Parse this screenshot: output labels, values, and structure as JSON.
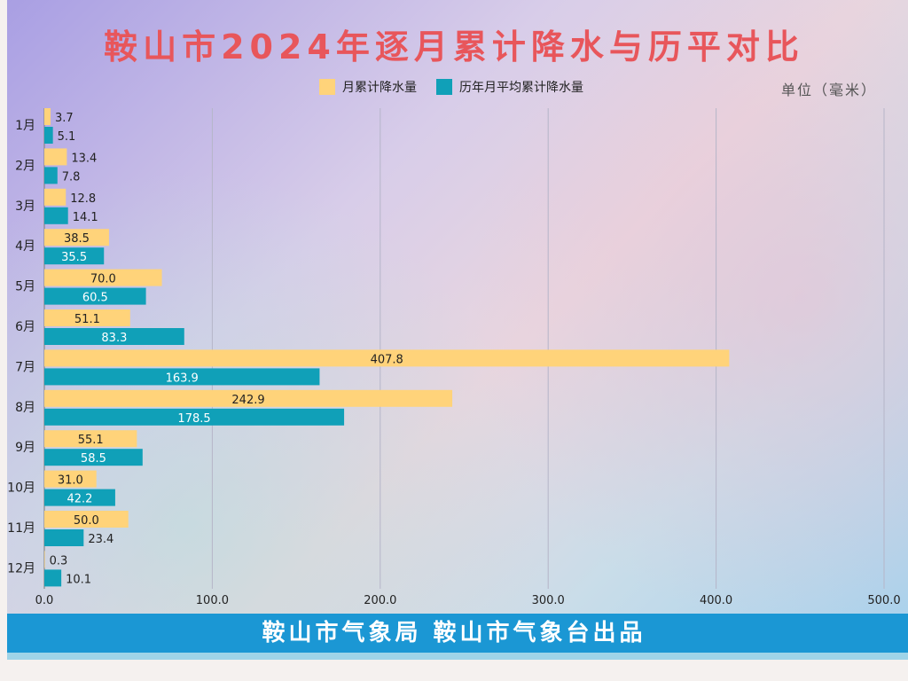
{
  "title": "鞍山市2024年逐月累计降水与历平对比",
  "unit_label": "单位（毫米）",
  "footer": "鞍山市气象局 鞍山市气象台出品",
  "colors": {
    "title": "#e8565b",
    "series_current": "#ffd37a",
    "series_avg": "#10a0b8",
    "footer_bg": "#1b97d4"
  },
  "chart_data": {
    "type": "bar",
    "orientation": "horizontal",
    "categories": [
      "1月",
      "2月",
      "3月",
      "4月",
      "5月",
      "6月",
      "7月",
      "8月",
      "9月",
      "10月",
      "11月",
      "12月"
    ],
    "series": [
      {
        "name": "月累计降水量",
        "values": [
          3.7,
          13.4,
          12.8,
          38.5,
          70.0,
          51.1,
          407.8,
          242.9,
          55.1,
          31.0,
          50.0,
          0.3
        ]
      },
      {
        "name": "历年月平均累计降水量",
        "values": [
          5.1,
          7.8,
          14.1,
          35.5,
          60.5,
          83.3,
          163.9,
          178.5,
          58.5,
          42.2,
          23.4,
          10.1
        ]
      }
    ],
    "x_ticks": [
      "0.0",
      "100.0",
      "200.0",
      "300.0",
      "400.0",
      "500.0"
    ],
    "xlim": [
      0,
      500
    ],
    "grid": "vertical",
    "legend_position": "top"
  }
}
